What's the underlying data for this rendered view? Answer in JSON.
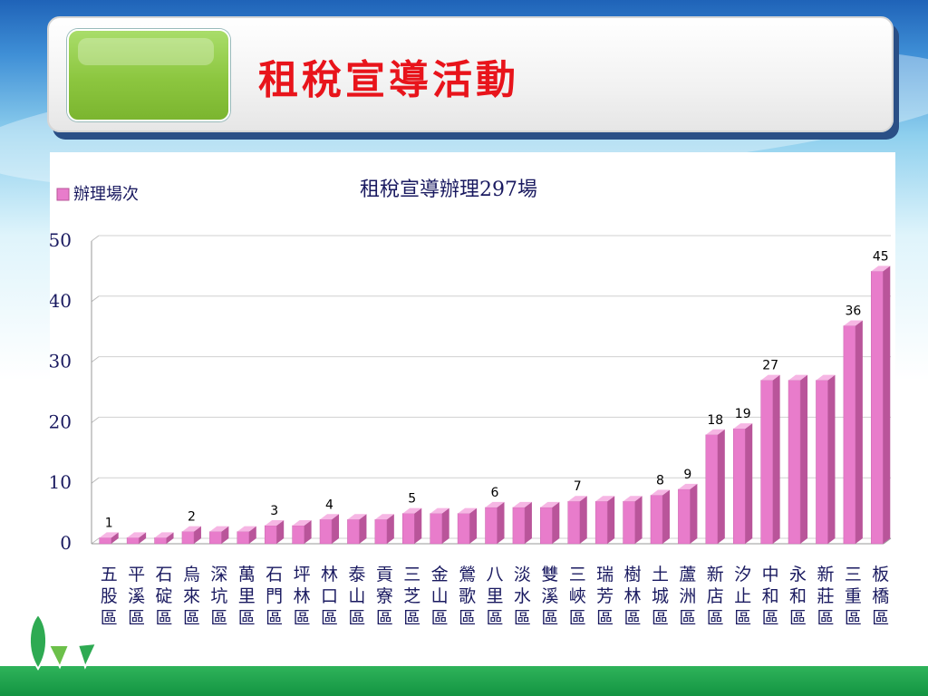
{
  "slide": {
    "title": "租稅宣導活動"
  },
  "chart_data": {
    "type": "bar",
    "title": "租稅宣導辦理297場",
    "legend": [
      "辦理場次"
    ],
    "legend_position": "top-left",
    "ylim": [
      0,
      50
    ],
    "yticks": [
      "0",
      "10",
      "20",
      "30",
      "40",
      "50"
    ],
    "grid": true,
    "colors": {
      "bar_front": "#e87ccb",
      "bar_top": "#f6b6e4",
      "bar_side": "#b9559a"
    },
    "categories": [
      "五股區",
      "平溪區",
      "石碇區",
      "烏來區",
      "深坑區",
      "萬里區",
      "石門區",
      "坪林區",
      "林口區",
      "泰山區",
      "貢寮區",
      "三芝區",
      "金山區",
      "鶯歌區",
      "八里區",
      "淡水區",
      "雙溪區",
      "三峽區",
      "瑞芳區",
      "樹林區",
      "土城區",
      "蘆洲區",
      "新店區",
      "汐止區",
      "中和區",
      "永和區",
      "新莊區",
      "三重區",
      "板橋區"
    ],
    "values": [
      1,
      1,
      1,
      2,
      2,
      2,
      3,
      3,
      4,
      4,
      4,
      5,
      5,
      5,
      6,
      6,
      6,
      7,
      7,
      7,
      8,
      9,
      18,
      19,
      27,
      27,
      27,
      36,
      45
    ],
    "data_labels": [
      "1",
      "",
      "",
      "2",
      "",
      "",
      "3",
      "",
      "4",
      "",
      "",
      "5",
      "",
      "",
      "6",
      "",
      "",
      "7",
      "",
      "",
      "8",
      "9",
      "18",
      "19",
      "27",
      "",
      "",
      "36",
      "45"
    ]
  }
}
